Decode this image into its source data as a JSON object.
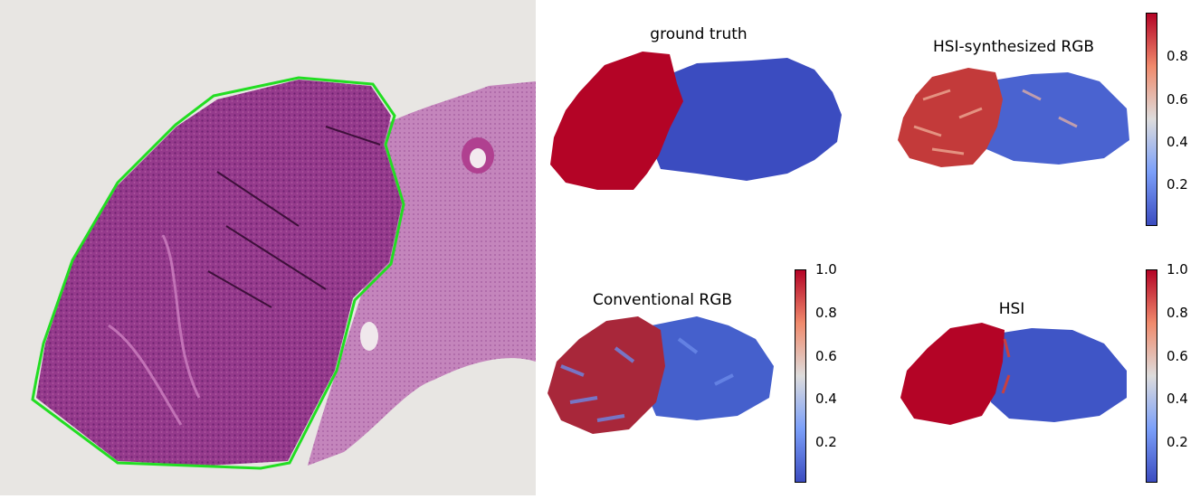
{
  "colors": {
    "tumor": "#b40426",
    "normal": "#3b4cc0",
    "annotation": "#22dd22",
    "slide_background": "#e7e5e2",
    "tissue": "#9a3a8e"
  },
  "colormap": "coolwarm",
  "panels": {
    "ground_truth": {
      "title": "ground truth"
    },
    "hsi_rgb": {
      "title": "HSI-synthesized RGB",
      "colorbar_ticks": [
        "0.8",
        "0.6",
        "0.4",
        "0.2"
      ]
    },
    "conv_rgb": {
      "title": "Conventional RGB",
      "colorbar_ticks": [
        "1.0",
        "0.8",
        "0.6",
        "0.4",
        "0.2"
      ]
    },
    "hsi": {
      "title": "HSI",
      "colorbar_ticks": [
        "1.0",
        "0.8",
        "0.6",
        "0.4",
        "0.2"
      ]
    }
  }
}
